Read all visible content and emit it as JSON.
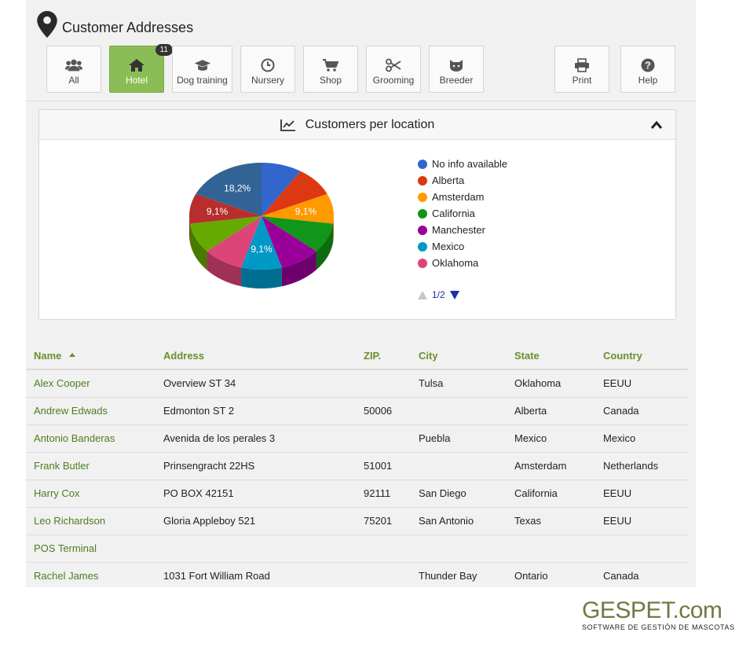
{
  "header": {
    "title": "Customer Addresses",
    "icon": "map-pin-icon"
  },
  "toolbar": {
    "buttons": [
      {
        "label": "All",
        "icon": "users-icon",
        "active": false
      },
      {
        "label": "Hotel",
        "icon": "home-icon",
        "active": true,
        "badge": "11"
      },
      {
        "label": "Dog training",
        "icon": "graduation-cap-icon",
        "active": false
      },
      {
        "label": "Nursery",
        "icon": "clock-icon",
        "active": false
      },
      {
        "label": "Shop",
        "icon": "cart-icon",
        "active": false
      },
      {
        "label": "Grooming",
        "icon": "scissors-icon",
        "active": false
      },
      {
        "label": "Breeder",
        "icon": "cat-icon",
        "active": false
      },
      {
        "label": "Print",
        "icon": "print-icon",
        "active": false
      },
      {
        "label": "Help",
        "icon": "help-icon",
        "active": false
      }
    ]
  },
  "panel": {
    "title": "Customers per location",
    "icon": "line-chart-icon",
    "collapse_icon": "chevron-up-icon"
  },
  "chart_data": {
    "type": "pie",
    "slices": [
      {
        "label": "No info available",
        "value": 9.1,
        "color": "#3366cc",
        "data_label": ""
      },
      {
        "label": "Alberta",
        "value": 9.1,
        "color": "#dc3912",
        "data_label": ""
      },
      {
        "label": "Amsterdam",
        "value": 9.1,
        "color": "#ff9900",
        "data_label": "9,1%"
      },
      {
        "label": "California",
        "value": 9.1,
        "color": "#109618",
        "data_label": ""
      },
      {
        "label": "Manchester",
        "value": 9.1,
        "color": "#990099",
        "data_label": ""
      },
      {
        "label": "Mexico",
        "value": 9.1,
        "color": "#0099c6",
        "data_label": "9,1%"
      },
      {
        "label": "Oklahoma",
        "value": 9.1,
        "color": "#dd4477",
        "data_label": ""
      },
      {
        "label": "",
        "value": 9.1,
        "color": "#66aa00",
        "data_label": ""
      },
      {
        "label": "",
        "value": 9.1,
        "color": "#b82e2e",
        "data_label": "9,1%"
      },
      {
        "label": "",
        "value": 18.2,
        "color": "#316395",
        "data_label": "18,2%"
      }
    ],
    "legend": [
      "No info available",
      "Alberta",
      "Amsterdam",
      "California",
      "Manchester",
      "Mexico",
      "Oklahoma"
    ],
    "legend_position": "right",
    "legend_page": "1/2"
  },
  "table": {
    "columns": [
      "Name",
      "Address",
      "ZIP.",
      "City",
      "State",
      "Country"
    ],
    "rows": [
      [
        "Alex Cooper",
        "Overview ST 34",
        "",
        "Tulsa",
        "Oklahoma",
        "EEUU"
      ],
      [
        "Andrew Edwads",
        "Edmonton ST 2",
        "50006",
        "",
        "Alberta",
        "Canada"
      ],
      [
        "Antonio Banderas",
        "Avenida de los perales 3",
        "",
        "Puebla",
        "Mexico",
        "Mexico"
      ],
      [
        "Frank Butler",
        "Prinsengracht 22HS",
        "51001",
        "",
        "Amsterdam",
        "Netherlands"
      ],
      [
        "Harry Cox",
        "PO BOX 42151",
        "92111",
        "San Diego",
        "California",
        "EEUU"
      ],
      [
        "Leo Richardson",
        "Gloria Appleboy 521",
        "75201",
        "San Antonio",
        "Texas",
        "EEUU"
      ],
      [
        "POS Terminal",
        "",
        "",
        "",
        "",
        ""
      ],
      [
        "Rachel James",
        "1031 Fort William Road",
        "",
        "Thunder Bay",
        "Ontario",
        "Canada"
      ]
    ]
  },
  "brand": {
    "logo": "GESPET.com",
    "tagline": "SOFTWARE DE GESTIÓN DE MASCOTAS"
  }
}
